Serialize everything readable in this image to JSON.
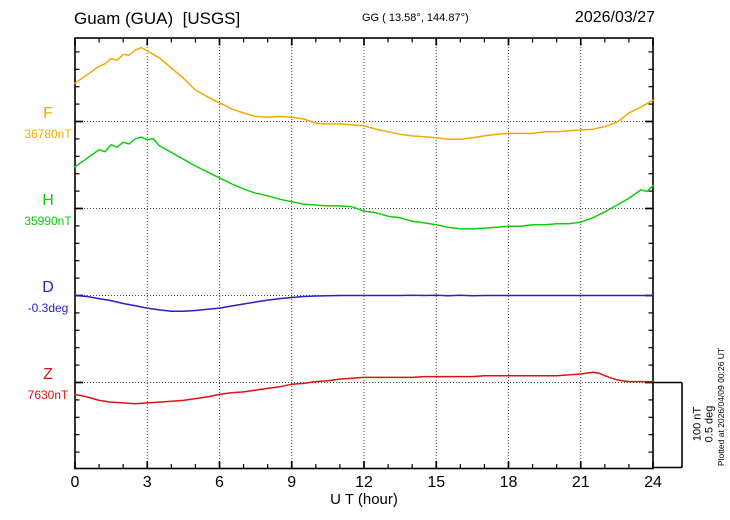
{
  "header": {
    "station": "Guam (GUA)  [USGS]",
    "coords": "GG ( 13.58°, 144.87°)",
    "date": "2026/03/27"
  },
  "scale_bar": {
    "nt_label": "100 nT",
    "deg_label": "0.5 deg"
  },
  "footer_note": "Plotted at 2026/04/09 00:26 UT",
  "chart_data": {
    "type": "line",
    "title": "Guam (GUA) [USGS] magnetogram 2026/03/27",
    "xlabel": "U T (hour)",
    "x_range": [
      0,
      24
    ],
    "x_ticks": [
      0,
      3,
      6,
      9,
      12,
      15,
      18,
      21,
      24
    ],
    "grid_hours": [
      3,
      6,
      9,
      12,
      15,
      18,
      21
    ],
    "grid": true,
    "scale_reference": {
      "nT": 100,
      "deg": 0.5
    },
    "series": [
      {
        "name": "F",
        "unit": "nT",
        "base_label": "36780nT",
        "base_value": 36780,
        "color": "#f5a800",
        "points": [
          [
            0,
            36825
          ],
          [
            0.5,
            36835
          ],
          [
            1,
            36845
          ],
          [
            1.25,
            36848
          ],
          [
            1.5,
            36854
          ],
          [
            1.75,
            36852
          ],
          [
            2,
            36859
          ],
          [
            2.25,
            36858
          ],
          [
            2.5,
            36864
          ],
          [
            2.75,
            36867
          ],
          [
            3,
            36863
          ],
          [
            3.5,
            36855
          ],
          [
            4,
            36843
          ],
          [
            4.5,
            36831
          ],
          [
            5,
            36817
          ],
          [
            5.5,
            36809
          ],
          [
            6,
            36802
          ],
          [
            6.5,
            36795
          ],
          [
            7,
            36790
          ],
          [
            7.5,
            36786
          ],
          [
            8,
            36785
          ],
          [
            8.5,
            36786
          ],
          [
            9,
            36785
          ],
          [
            9.5,
            36783
          ],
          [
            10,
            36778
          ],
          [
            10.5,
            36777
          ],
          [
            11,
            36777
          ],
          [
            11.5,
            36776
          ],
          [
            12,
            36775
          ],
          [
            12.5,
            36771
          ],
          [
            13,
            36768
          ],
          [
            13.5,
            36765
          ],
          [
            14,
            36763
          ],
          [
            14.5,
            36762
          ],
          [
            15,
            36761
          ],
          [
            15.5,
            36759
          ],
          [
            16,
            36759
          ],
          [
            16.5,
            36761
          ],
          [
            17,
            36763
          ],
          [
            17.5,
            36765
          ],
          [
            18,
            36766
          ],
          [
            18.5,
            36766
          ],
          [
            19,
            36766
          ],
          [
            19.5,
            36768
          ],
          [
            20,
            36768
          ],
          [
            20.5,
            36769
          ],
          [
            21,
            36770
          ],
          [
            21.5,
            36771
          ],
          [
            22,
            36774
          ],
          [
            22.5,
            36779
          ],
          [
            23,
            36790
          ],
          [
            23.5,
            36797
          ],
          [
            24,
            36805
          ]
        ]
      },
      {
        "name": "H",
        "unit": "nT",
        "base_label": "35990nT",
        "base_value": 35990,
        "color": "#0ccf0c",
        "points": [
          [
            0,
            36039
          ],
          [
            0.5,
            36049
          ],
          [
            1,
            36059
          ],
          [
            1.25,
            36057
          ],
          [
            1.5,
            36065
          ],
          [
            1.75,
            36062
          ],
          [
            2,
            36068
          ],
          [
            2.25,
            36066
          ],
          [
            2.5,
            36072
          ],
          [
            2.75,
            36074
          ],
          [
            3,
            36071
          ],
          [
            3.25,
            36072
          ],
          [
            3.5,
            36064
          ],
          [
            4,
            36056
          ],
          [
            4.5,
            36048
          ],
          [
            5,
            36040
          ],
          [
            5.5,
            36033
          ],
          [
            6,
            36026
          ],
          [
            6.5,
            36019
          ],
          [
            7,
            36013
          ],
          [
            7.5,
            36008
          ],
          [
            8,
            36005
          ],
          [
            8.5,
            36001
          ],
          [
            9,
            35998
          ],
          [
            9.5,
            35995
          ],
          [
            10,
            35994
          ],
          [
            10.5,
            35993
          ],
          [
            11,
            35993
          ],
          [
            11.5,
            35992
          ],
          [
            12,
            35987
          ],
          [
            12.5,
            35985
          ],
          [
            13,
            35981
          ],
          [
            13.5,
            35979
          ],
          [
            14,
            35975
          ],
          [
            14.5,
            35973
          ],
          [
            15,
            35971
          ],
          [
            15.5,
            35968
          ],
          [
            16,
            35966
          ],
          [
            16.5,
            35966
          ],
          [
            17,
            35967
          ],
          [
            17.5,
            35968
          ],
          [
            18,
            35969
          ],
          [
            18.5,
            35969
          ],
          [
            19,
            35971
          ],
          [
            19.5,
            35971
          ],
          [
            20,
            35972
          ],
          [
            20.5,
            35972
          ],
          [
            21,
            35974
          ],
          [
            21.5,
            35979
          ],
          [
            22,
            35986
          ],
          [
            22.5,
            35994
          ],
          [
            23,
            36002
          ],
          [
            23.25,
            36007
          ],
          [
            23.5,
            36012
          ],
          [
            23.75,
            36010
          ],
          [
            24,
            36017
          ]
        ]
      },
      {
        "name": "D",
        "unit": "deg",
        "base_label": "-0.3deg",
        "base_value": -0.3,
        "color": "#2222cc",
        "points": [
          [
            0,
            -0.3
          ],
          [
            0.5,
            -0.306
          ],
          [
            1,
            -0.318
          ],
          [
            1.5,
            -0.33
          ],
          [
            2,
            -0.347
          ],
          [
            2.5,
            -0.36
          ],
          [
            3,
            -0.374
          ],
          [
            3.5,
            -0.385
          ],
          [
            4,
            -0.393
          ],
          [
            4.5,
            -0.393
          ],
          [
            5,
            -0.388
          ],
          [
            5.5,
            -0.381
          ],
          [
            6,
            -0.374
          ],
          [
            6.5,
            -0.362
          ],
          [
            7,
            -0.35
          ],
          [
            7.5,
            -0.338
          ],
          [
            8,
            -0.327
          ],
          [
            8.5,
            -0.318
          ],
          [
            9,
            -0.312
          ],
          [
            9.5,
            -0.306
          ],
          [
            10,
            -0.303
          ],
          [
            10.5,
            -0.301
          ],
          [
            11,
            -0.3
          ],
          [
            11.5,
            -0.3
          ],
          [
            12,
            -0.3
          ],
          [
            12.5,
            -0.3
          ],
          [
            13,
            -0.3
          ],
          [
            13.5,
            -0.3
          ],
          [
            14,
            -0.298
          ],
          [
            14.5,
            -0.3
          ],
          [
            15,
            -0.298
          ],
          [
            15.5,
            -0.301
          ],
          [
            16,
            -0.298
          ],
          [
            16.5,
            -0.301
          ],
          [
            17,
            -0.3
          ],
          [
            17.5,
            -0.3
          ],
          [
            18,
            -0.3
          ],
          [
            18.5,
            -0.3
          ],
          [
            19,
            -0.3
          ],
          [
            19.5,
            -0.3
          ],
          [
            20,
            -0.3
          ],
          [
            20.5,
            -0.3
          ],
          [
            21,
            -0.3
          ],
          [
            21.5,
            -0.3
          ],
          [
            22,
            -0.3
          ],
          [
            22.5,
            -0.3
          ],
          [
            23,
            -0.3
          ],
          [
            23.5,
            -0.3
          ],
          [
            24,
            -0.3
          ]
        ]
      },
      {
        "name": "Z",
        "unit": "nT",
        "base_label": "7630nT",
        "base_value": 7630,
        "color": "#e01111",
        "points": [
          [
            0,
            7616
          ],
          [
            0.5,
            7613
          ],
          [
            1,
            7609
          ],
          [
            1.5,
            7607
          ],
          [
            2,
            7606
          ],
          [
            2.5,
            7605
          ],
          [
            3,
            7606
          ],
          [
            3.5,
            7607
          ],
          [
            4,
            7608
          ],
          [
            4.5,
            7609
          ],
          [
            5,
            7611
          ],
          [
            5.5,
            7613
          ],
          [
            6,
            7616
          ],
          [
            6.5,
            7618
          ],
          [
            7,
            7619
          ],
          [
            7.5,
            7621
          ],
          [
            8,
            7623
          ],
          [
            8.5,
            7625
          ],
          [
            9,
            7628
          ],
          [
            9.5,
            7629
          ],
          [
            10,
            7631
          ],
          [
            10.5,
            7632
          ],
          [
            11,
            7634
          ],
          [
            11.5,
            7635
          ],
          [
            12,
            7636
          ],
          [
            12.5,
            7636
          ],
          [
            13,
            7636
          ],
          [
            13.5,
            7636
          ],
          [
            14,
            7636
          ],
          [
            14.5,
            7637
          ],
          [
            15,
            7637
          ],
          [
            15.5,
            7637
          ],
          [
            16,
            7637
          ],
          [
            16.5,
            7637
          ],
          [
            17,
            7638
          ],
          [
            17.5,
            7638
          ],
          [
            18,
            7638
          ],
          [
            18.5,
            7638
          ],
          [
            19,
            7638
          ],
          [
            19.5,
            7638
          ],
          [
            20,
            7638
          ],
          [
            20.5,
            7639
          ],
          [
            21,
            7640
          ],
          [
            21.5,
            7642
          ],
          [
            21.75,
            7641
          ],
          [
            22,
            7638
          ],
          [
            22.5,
            7633
          ],
          [
            23,
            7631
          ],
          [
            23.5,
            7631
          ],
          [
            24,
            7631
          ]
        ]
      }
    ]
  }
}
